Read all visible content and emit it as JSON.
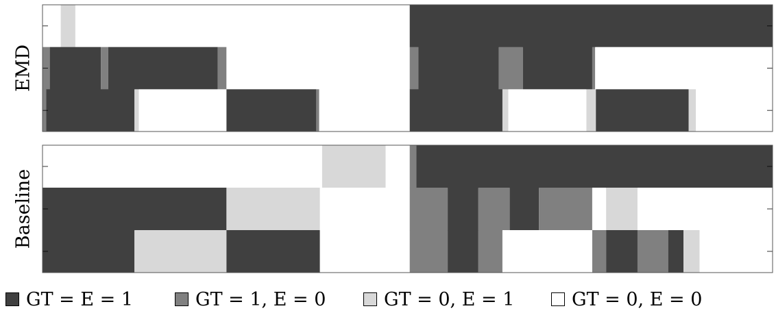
{
  "chart_data": {
    "type": "heatmap",
    "x_range": [
      0,
      1
    ],
    "grid": false,
    "legend_position": "bottom",
    "colors": {
      "gt1_e1": "#404040",
      "gt1_e0": "#808080",
      "gt0_e1": "#d8d8d8",
      "gt0_e0": "#ffffff"
    },
    "legend": [
      {
        "key": "gt1_e1",
        "label": "GT = E = 1"
      },
      {
        "key": "gt1_e0",
        "label": "GT = 1, E = 0"
      },
      {
        "key": "gt0_e1",
        "label": "GT = 0, E = 1"
      },
      {
        "key": "gt0_e0",
        "label": "GT = 0, E = 0"
      }
    ],
    "panels": [
      {
        "label": "EMD",
        "rows": [
          [
            [
              0.0,
              0.025,
              "gt0_e0"
            ],
            [
              0.025,
              0.045,
              "gt0_e1"
            ],
            [
              0.045,
              0.503,
              "gt0_e0"
            ],
            [
              0.503,
              1.0,
              "gt1_e1"
            ]
          ],
          [
            [
              0.0,
              0.01,
              "gt1_e0"
            ],
            [
              0.01,
              0.08,
              "gt1_e1"
            ],
            [
              0.08,
              0.09,
              "gt1_e0"
            ],
            [
              0.09,
              0.24,
              "gt1_e1"
            ],
            [
              0.24,
              0.252,
              "gt1_e0"
            ],
            [
              0.252,
              0.503,
              "gt0_e0"
            ],
            [
              0.503,
              0.515,
              "gt1_e0"
            ],
            [
              0.515,
              0.625,
              "gt1_e1"
            ],
            [
              0.625,
              0.658,
              "gt1_e0"
            ],
            [
              0.658,
              0.753,
              "gt1_e1"
            ],
            [
              0.753,
              0.757,
              "gt1_e0"
            ],
            [
              0.757,
              1.0,
              "gt0_e0"
            ]
          ],
          [
            [
              0.0,
              0.005,
              "gt1_e0"
            ],
            [
              0.005,
              0.126,
              "gt1_e1"
            ],
            [
              0.126,
              0.132,
              "gt0_e1"
            ],
            [
              0.132,
              0.252,
              "gt0_e0"
            ],
            [
              0.252,
              0.375,
              "gt1_e1"
            ],
            [
              0.375,
              0.379,
              "gt1_e0"
            ],
            [
              0.379,
              0.503,
              "gt0_e0"
            ],
            [
              0.503,
              0.63,
              "gt1_e1"
            ],
            [
              0.63,
              0.638,
              "gt0_e1"
            ],
            [
              0.638,
              0.745,
              "gt0_e0"
            ],
            [
              0.745,
              0.758,
              "gt0_e1"
            ],
            [
              0.758,
              0.885,
              "gt1_e1"
            ],
            [
              0.885,
              0.895,
              "gt0_e1"
            ],
            [
              0.895,
              1.0,
              "gt0_e0"
            ]
          ]
        ]
      },
      {
        "label": "Baseline",
        "rows": [
          [
            [
              0.0,
              0.383,
              "gt0_e0"
            ],
            [
              0.383,
              0.47,
              "gt0_e1"
            ],
            [
              0.47,
              0.503,
              "gt0_e0"
            ],
            [
              0.503,
              0.512,
              "gt1_e0"
            ],
            [
              0.512,
              1.0,
              "gt1_e1"
            ]
          ],
          [
            [
              0.0,
              0.252,
              "gt1_e1"
            ],
            [
              0.252,
              0.38,
              "gt0_e1"
            ],
            [
              0.38,
              0.503,
              "gt0_e0"
            ],
            [
              0.503,
              0.555,
              "gt1_e0"
            ],
            [
              0.555,
              0.597,
              "gt1_e1"
            ],
            [
              0.597,
              0.64,
              "gt1_e0"
            ],
            [
              0.64,
              0.68,
              "gt1_e1"
            ],
            [
              0.68,
              0.753,
              "gt1_e0"
            ],
            [
              0.753,
              0.772,
              "gt0_e0"
            ],
            [
              0.772,
              0.815,
              "gt0_e1"
            ],
            [
              0.815,
              1.0,
              "gt0_e0"
            ]
          ],
          [
            [
              0.0,
              0.126,
              "gt1_e1"
            ],
            [
              0.126,
              0.252,
              "gt0_e1"
            ],
            [
              0.252,
              0.38,
              "gt1_e1"
            ],
            [
              0.38,
              0.503,
              "gt0_e0"
            ],
            [
              0.503,
              0.555,
              "gt1_e0"
            ],
            [
              0.555,
              0.597,
              "gt1_e1"
            ],
            [
              0.597,
              0.63,
              "gt1_e0"
            ],
            [
              0.63,
              0.753,
              "gt0_e0"
            ],
            [
              0.753,
              0.772,
              "gt1_e0"
            ],
            [
              0.772,
              0.815,
              "gt1_e1"
            ],
            [
              0.815,
              0.857,
              "gt1_e0"
            ],
            [
              0.857,
              0.878,
              "gt1_e1"
            ],
            [
              0.878,
              0.9,
              "gt0_e1"
            ],
            [
              0.9,
              1.0,
              "gt0_e0"
            ]
          ]
        ]
      }
    ]
  }
}
